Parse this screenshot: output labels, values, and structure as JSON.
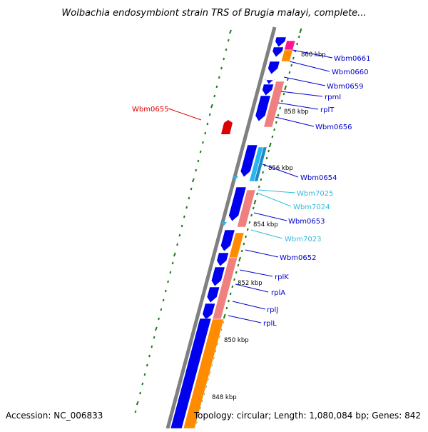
{
  "title": "Wolbachia endosymbiont strain TRS of Brugia malayi, complete...",
  "accession": "Accession: NC_006833",
  "summary": "Topology: circular; Length: 1,080,084 bp; Genes: 842",
  "colors": {
    "backbone": "#808080",
    "gene_blue": "#0000ee",
    "gene_cyan": "#29b6ee",
    "rrna_orange": "#ff8c00",
    "rrna_pink": "#f08080",
    "magenta": "#ff1493",
    "tick_green": "#1a7a1a",
    "label_blue": "#0000cc",
    "label_cyan": "#33bbdd",
    "label_red": "#dd0000"
  },
  "scale_labels": [
    "860 kbp",
    "858 kbp",
    "856 kbp",
    "854 kbp",
    "852 kbp",
    "850 kbp",
    "848 kbp"
  ],
  "gene_labels": [
    {
      "text": "Wbm0661",
      "color": "blue"
    },
    {
      "text": "Wbm0660",
      "color": "blue"
    },
    {
      "text": "Wbm0659",
      "color": "blue"
    },
    {
      "text": "rpmI",
      "color": "blue"
    },
    {
      "text": "rplT",
      "color": "blue"
    },
    {
      "text": "Wbm0656",
      "color": "blue"
    },
    {
      "text": "Wbm0654",
      "color": "blue"
    },
    {
      "text": "Wbm7025",
      "color": "cyan"
    },
    {
      "text": "Wbm7024",
      "color": "cyan"
    },
    {
      "text": "Wbm0653",
      "color": "blue"
    },
    {
      "text": "Wbm7023",
      "color": "cyan"
    },
    {
      "text": "Wbm0652",
      "color": "blue"
    },
    {
      "text": "rplK",
      "color": "blue"
    },
    {
      "text": "rplA",
      "color": "blue"
    },
    {
      "text": "rplJ",
      "color": "blue"
    },
    {
      "text": "rplL",
      "color": "blue"
    },
    {
      "text": "Wbm0655",
      "color": "red"
    }
  ]
}
